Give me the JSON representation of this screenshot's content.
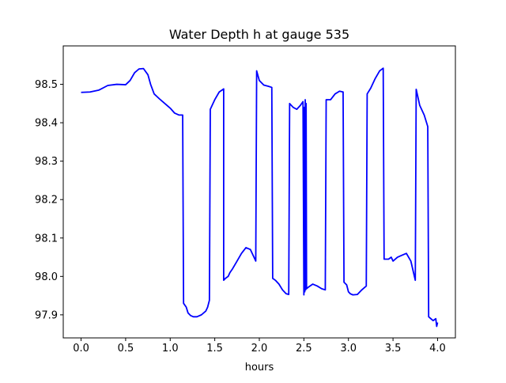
{
  "chart_data": {
    "type": "line",
    "title": "Water Depth h at gauge 535",
    "xlabel": "hours",
    "ylabel": "",
    "xlim": [
      -0.2,
      4.2
    ],
    "ylim": [
      97.84,
      98.6
    ],
    "grid": false,
    "legend": "none",
    "x_ticks": [
      0.0,
      0.5,
      1.0,
      1.5,
      2.0,
      2.5,
      3.0,
      3.5,
      4.0
    ],
    "x_tick_labels": [
      "0.0",
      "0.5",
      "1.0",
      "1.5",
      "2.0",
      "2.5",
      "3.0",
      "3.5",
      "4.0"
    ],
    "y_ticks": [
      97.9,
      98.0,
      98.1,
      98.2,
      98.3,
      98.4,
      98.5
    ],
    "y_tick_labels": [
      "97.9",
      "98.0",
      "98.1",
      "98.2",
      "98.3",
      "98.4",
      "98.5"
    ],
    "series": [
      {
        "color": "#0000ff",
        "x": [
          0.0,
          0.1,
          0.2,
          0.3,
          0.4,
          0.5,
          0.55,
          0.6,
          0.65,
          0.7,
          0.75,
          0.78,
          0.82,
          0.88,
          0.95,
          1.0,
          1.05,
          1.1,
          1.14,
          1.15,
          1.18,
          1.2,
          1.23,
          1.26,
          1.3,
          1.35,
          1.4,
          1.42,
          1.44,
          1.45,
          1.5,
          1.55,
          1.6,
          1.6,
          1.62,
          1.65,
          1.67,
          1.7,
          1.75,
          1.8,
          1.85,
          1.9,
          1.94,
          1.96,
          1.97,
          2.0,
          2.05,
          2.1,
          2.14,
          2.15,
          2.18,
          2.22,
          2.26,
          2.3,
          2.33,
          2.34,
          2.38,
          2.42,
          2.46,
          2.49,
          2.5,
          2.505,
          2.51,
          2.515,
          2.52,
          2.525,
          2.53,
          2.55,
          2.6,
          2.65,
          2.7,
          2.74,
          2.75,
          2.8,
          2.85,
          2.9,
          2.94,
          2.95,
          2.98,
          3.0,
          3.02,
          3.05,
          3.1,
          3.15,
          3.2,
          3.21,
          3.25,
          3.3,
          3.35,
          3.39,
          3.4,
          3.45,
          3.48,
          3.5,
          3.55,
          3.6,
          3.65,
          3.7,
          3.75,
          3.76,
          3.8,
          3.85,
          3.89,
          3.9,
          3.95,
          3.98,
          3.99,
          4.0
        ],
        "y": [
          98.479,
          98.48,
          98.485,
          98.497,
          98.5,
          98.499,
          98.51,
          98.53,
          98.54,
          98.541,
          98.525,
          98.5,
          98.475,
          98.462,
          98.448,
          98.438,
          98.425,
          98.42,
          98.42,
          97.93,
          97.92,
          97.905,
          97.898,
          97.895,
          97.895,
          97.9,
          97.91,
          97.92,
          97.938,
          98.435,
          98.46,
          98.48,
          98.488,
          97.99,
          97.995,
          98.0,
          98.01,
          98.02,
          98.04,
          98.06,
          98.075,
          98.07,
          98.05,
          98.04,
          98.535,
          98.51,
          98.498,
          98.495,
          98.492,
          97.995,
          97.99,
          97.98,
          97.965,
          97.955,
          97.953,
          98.45,
          98.44,
          98.435,
          98.445,
          98.455,
          97.952,
          98.44,
          97.96,
          98.46,
          97.965,
          98.45,
          97.968,
          97.972,
          97.98,
          97.975,
          97.968,
          97.965,
          98.46,
          98.46,
          98.475,
          98.482,
          98.48,
          97.985,
          97.978,
          97.96,
          97.955,
          97.952,
          97.953,
          97.965,
          97.975,
          98.475,
          98.49,
          98.515,
          98.535,
          98.542,
          98.045,
          98.045,
          98.05,
          98.04,
          98.05,
          98.055,
          98.06,
          98.04,
          97.99,
          98.487,
          98.445,
          98.42,
          98.39,
          97.895,
          97.885,
          97.89,
          97.87,
          97.88
        ]
      }
    ]
  }
}
